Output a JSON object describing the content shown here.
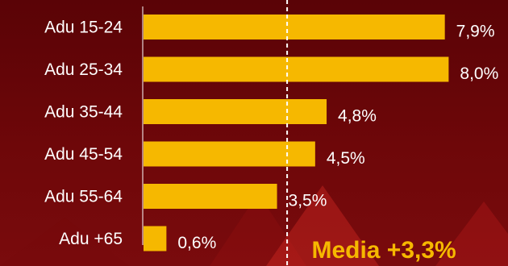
{
  "chart_data": {
    "type": "bar",
    "orientation": "horizontal",
    "categories": [
      "Adu 15-24",
      "Adu 25-34",
      "Adu 35-44",
      "Adu 45-54",
      "Adu 55-64",
      "Adu +65"
    ],
    "values": [
      7.9,
      8.0,
      4.8,
      4.5,
      3.5,
      0.6
    ],
    "value_labels": [
      "7,9%",
      "8,0%",
      "4,8%",
      "4,5%",
      "3,5%",
      "0,6%"
    ],
    "xlim": [
      0,
      8.2
    ],
    "mean": {
      "value": 3.3,
      "label": "Media +3,3%"
    },
    "grid": false,
    "bar_color": "#f6b800",
    "text_color": "#ffffff",
    "mean_label_color": "#f6b800"
  }
}
